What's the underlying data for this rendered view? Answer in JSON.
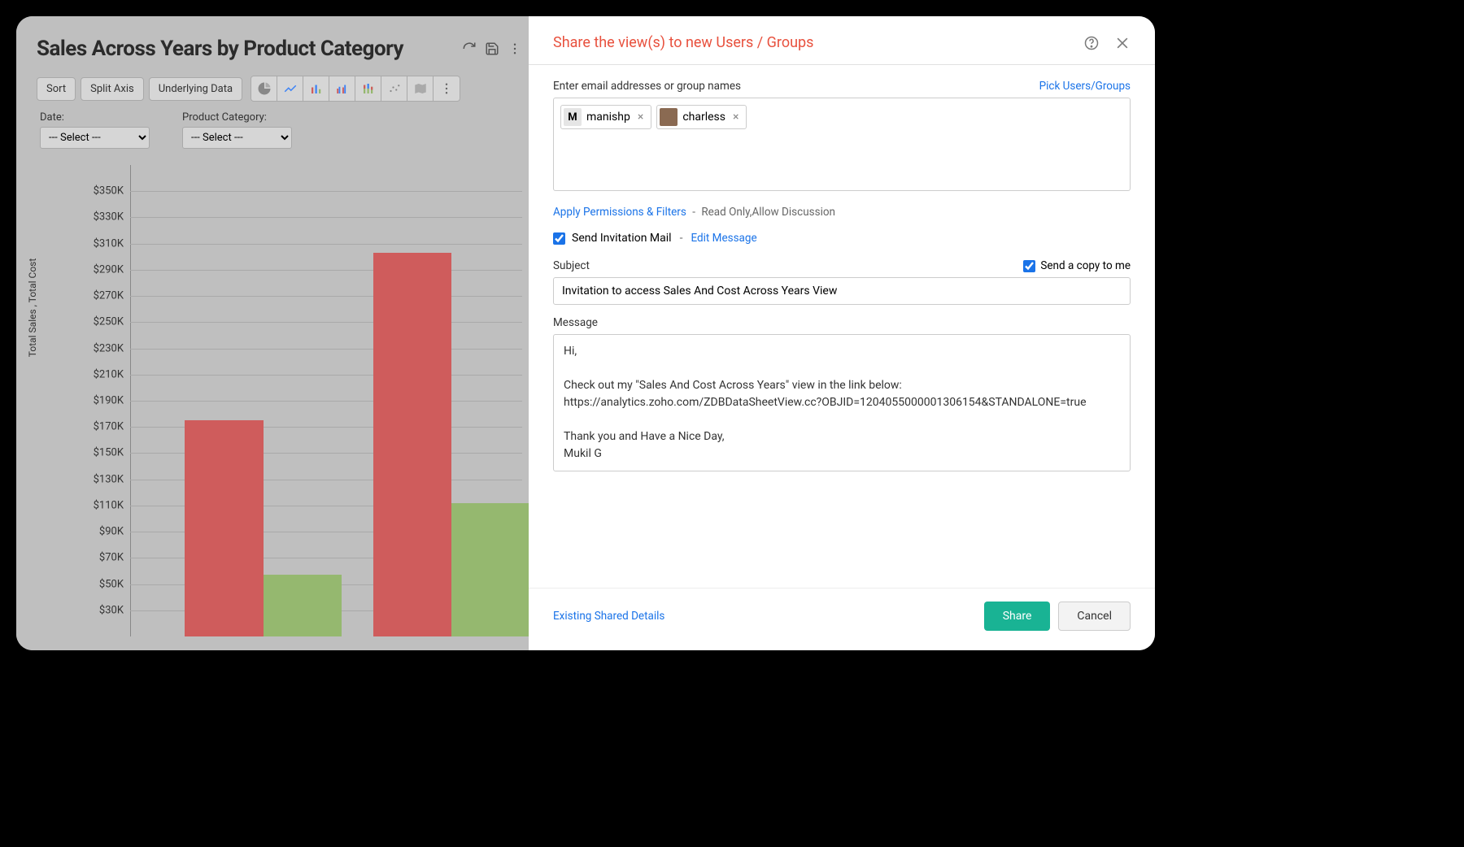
{
  "left": {
    "title": "Sales Across Years by Product Category",
    "toolbar": {
      "sort": "Sort",
      "split_axis": "Split Axis",
      "underlying_data": "Underlying Data"
    },
    "filters": {
      "date_label": "Date:",
      "date_value": "--- Select ---",
      "category_label": "Product Category:",
      "category_value": "--- Select ---"
    },
    "chart": {
      "type": "bar",
      "y_axis_title": "Total Sales , Total Cost",
      "y_max": 370000,
      "y_min": 10000,
      "y_tick_step": 20000,
      "y_tick_format_prefix": "$",
      "y_tick_format_suffix": "K",
      "background_color": "#bfbfbf",
      "gridline_color": "#a9a9a9",
      "groups": [
        {
          "bars": [
            {
              "value": 175000,
              "color": "#cf5c5c"
            },
            {
              "value": 57000,
              "color": "#95b86f"
            }
          ],
          "left_pct": 14,
          "width_pct": 40
        },
        {
          "bars": [
            {
              "value": 303000,
              "color": "#cf5c5c"
            },
            {
              "value": 112000,
              "color": "#95b86f"
            }
          ],
          "left_pct": 62,
          "width_pct": 40
        }
      ]
    }
  },
  "share": {
    "title": "Share the view(s) to new Users / Groups",
    "email_label": "Enter email addresses or group names",
    "pick_link": "Pick Users/Groups",
    "chips": [
      {
        "avatar_text": "M",
        "avatar_bg": "#e5e5e5",
        "name": "manishp"
      },
      {
        "avatar_text": "",
        "avatar_bg": "#8a6a52",
        "name": "charless"
      }
    ],
    "perm_link": "Apply Permissions & Filters",
    "perm_values": "Read Only,Allow Discussion",
    "send_invite_label": "Send Invitation Mail",
    "edit_message_link": "Edit Message",
    "subject_label": "Subject",
    "copy_me_label": "Send a copy to me",
    "subject_value": "Invitation to access Sales And Cost Across Years View",
    "message_label": "Message",
    "message_body": "Hi,\n\nCheck out my \"Sales And Cost Across Years\" view in the link below:\nhttps://analytics.zoho.com/ZDBDataSheetView.cc?OBJID=1204055000001306154&STANDALONE=true\n\nThank you and Have a Nice Day,\nMukil G",
    "existing_link": "Existing Shared Details",
    "share_btn": "Share",
    "cancel_btn": "Cancel"
  }
}
